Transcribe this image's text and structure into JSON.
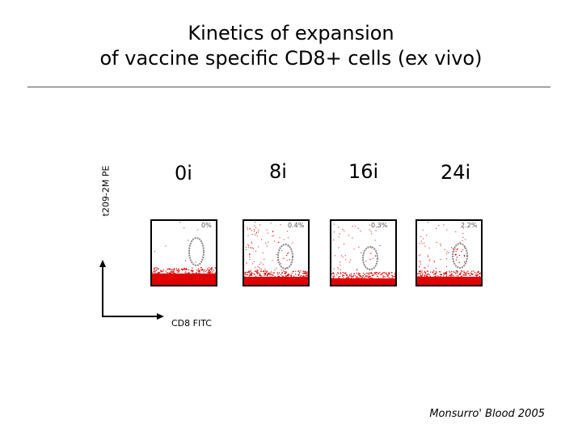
{
  "title": {
    "line1": "Kinetics of expansion",
    "line2": "of vaccine specific CD8+ cells (ex vivo)"
  },
  "y_axis_label": "t209-2M PE",
  "x_axis_label": "CD8 FITC",
  "panels": [
    {
      "timepoint": "0i",
      "percent": "0%"
    },
    {
      "timepoint": "8i",
      "percent": "0.4%"
    },
    {
      "timepoint": "16i",
      "percent": "0.3%"
    },
    {
      "timepoint": "24i",
      "percent": "2.2%"
    }
  ],
  "citation": "Monsurro' Blood 2005",
  "colors": {
    "events": "#e00000",
    "gate": "#888888",
    "frame": "#000000"
  }
}
